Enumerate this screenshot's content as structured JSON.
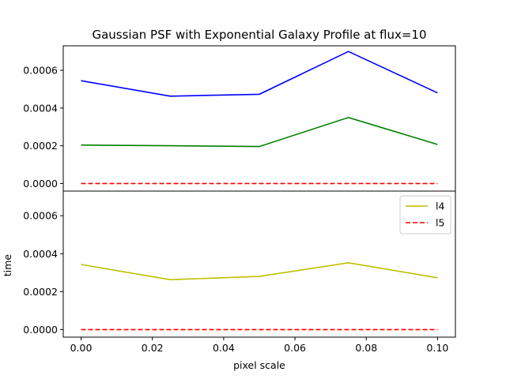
{
  "chart_data": {
    "type": "line",
    "title": "Gaussian PSF with Exponential Galaxy Profile at flux=10",
    "xlabel": "pixel scale",
    "ylabel": "time",
    "x": [
      0.0,
      0.025,
      0.05,
      0.075,
      0.1
    ],
    "xlim": [
      -0.005,
      0.105
    ],
    "xticks": [
      0.0,
      0.02,
      0.04,
      0.06,
      0.08,
      0.1
    ],
    "xtick_labels": [
      "0.00",
      "0.02",
      "0.04",
      "0.06",
      "0.08",
      "0.10"
    ],
    "ylim": [
      -4e-05,
      0.00073
    ],
    "yticks": [
      0.0,
      0.0002,
      0.0004,
      0.0006
    ],
    "ytick_labels": [
      "0.0000",
      "0.0002",
      "0.0004",
      "0.0006"
    ],
    "grid": false,
    "panels": [
      {
        "legend": null,
        "series": [
          {
            "color": "#0000ff",
            "dash": "solid",
            "values": [
              0.000545,
              0.000463,
              0.000473,
              0.0007,
              0.00048
            ]
          },
          {
            "color": "#008000",
            "dash": "solid",
            "values": [
              0.000204,
              0.0002,
              0.000196,
              0.00035,
              0.000207
            ]
          },
          {
            "color": "#ff0000",
            "dash": "dashed",
            "values": [
              0.0,
              0.0,
              0.0,
              0.0,
              0.0
            ]
          }
        ]
      },
      {
        "legend": "top-right",
        "series": [
          {
            "name": "l4",
            "color": "#bfbf00",
            "dash": "solid",
            "values": [
              0.000343,
              0.000263,
              0.00028,
              0.000352,
              0.000273
            ]
          },
          {
            "name": "l5",
            "color": "#ff0000",
            "dash": "dashed",
            "values": [
              0.0,
              0.0,
              0.0,
              0.0,
              0.0
            ]
          }
        ]
      }
    ]
  }
}
